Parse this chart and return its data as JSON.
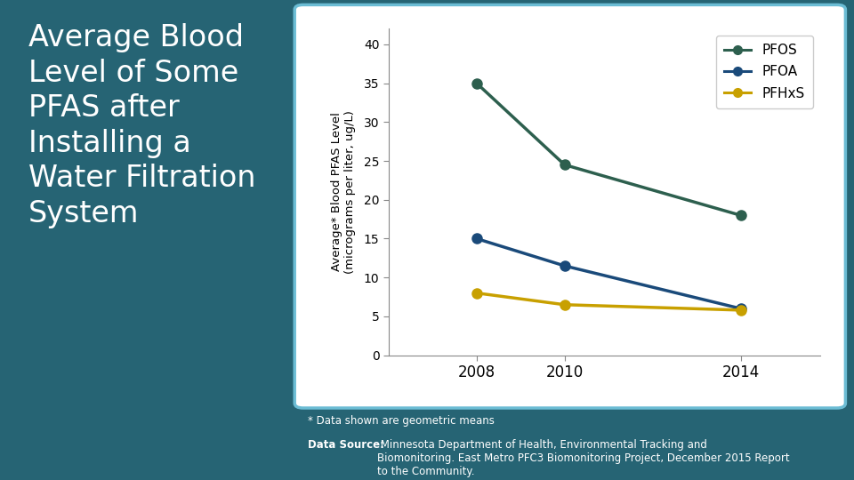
{
  "years": [
    2008,
    2010,
    2014
  ],
  "PFOS": [
    35,
    24.5,
    18
  ],
  "PFOA": [
    15,
    11.5,
    6
  ],
  "PFHxS": [
    8,
    6.5,
    5.8
  ],
  "PFOS_color": "#2d5f4e",
  "PFOA_color": "#1a4a7a",
  "PFHxS_color": "#c8a000",
  "ylabel": "Average* Blood PFAS Level\n(micrograms per liter, ug/L)",
  "ylim": [
    0,
    42
  ],
  "yticks": [
    0,
    5,
    10,
    15,
    20,
    25,
    30,
    35,
    40
  ],
  "background_color": "#266474",
  "chart_bg": "#ffffff",
  "chart_border": "#6bbcd4",
  "footnote1": "* Data shown are geometric means",
  "footnote2_bold": "Data Source:",
  "footnote2_rest": " Minnesota Department of Health, Environmental Tracking and\nBiomonitoring. East Metro PFC3 Biomonitoring Project, December 2015 Report\nto the Community.",
  "title_text": "Average Blood\nLevel of Some\nPFAS after\nInstalling a\nWater Filtration\nSystem",
  "title_color": "#ffffff",
  "title_fontsize": 24,
  "marker_size": 8,
  "line_width": 2.5
}
